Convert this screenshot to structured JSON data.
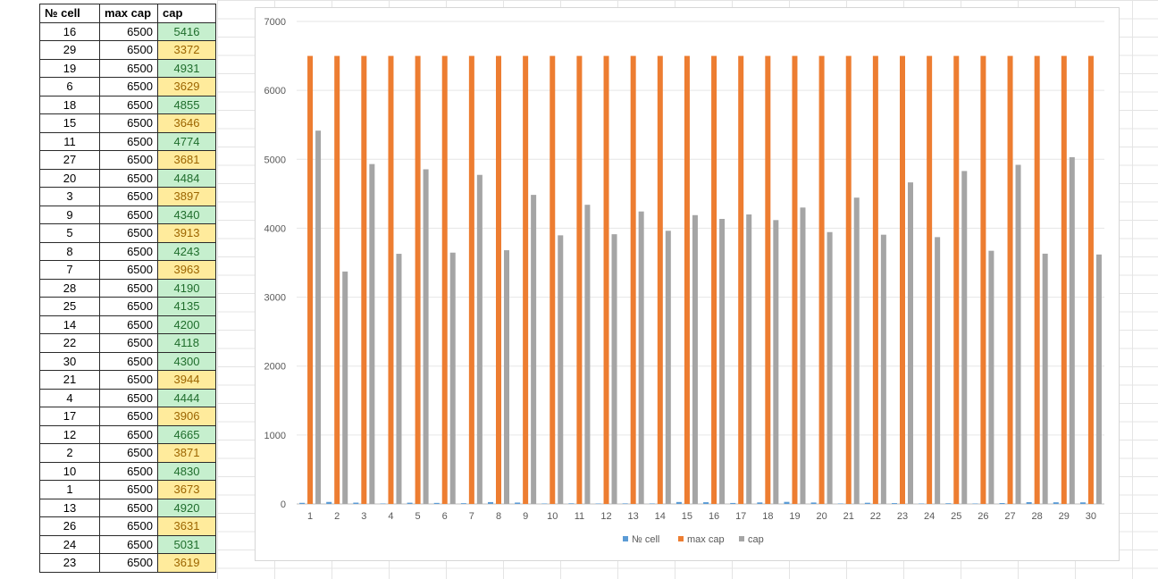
{
  "table": {
    "headers": [
      "№ cell",
      "max cap",
      "cap"
    ],
    "rows": [
      {
        "cell": "16",
        "max_cap": "6500",
        "cap": "5416",
        "status": "good"
      },
      {
        "cell": "29",
        "max_cap": "6500",
        "cap": "3372",
        "status": "warn"
      },
      {
        "cell": "19",
        "max_cap": "6500",
        "cap": "4931",
        "status": "good"
      },
      {
        "cell": "6",
        "max_cap": "6500",
        "cap": "3629",
        "status": "warn"
      },
      {
        "cell": "18",
        "max_cap": "6500",
        "cap": "4855",
        "status": "good"
      },
      {
        "cell": "15",
        "max_cap": "6500",
        "cap": "3646",
        "status": "warn"
      },
      {
        "cell": "11",
        "max_cap": "6500",
        "cap": "4774",
        "status": "good"
      },
      {
        "cell": "27",
        "max_cap": "6500",
        "cap": "3681",
        "status": "warn"
      },
      {
        "cell": "20",
        "max_cap": "6500",
        "cap": "4484",
        "status": "good"
      },
      {
        "cell": "3",
        "max_cap": "6500",
        "cap": "3897",
        "status": "warn"
      },
      {
        "cell": "9",
        "max_cap": "6500",
        "cap": "4340",
        "status": "good"
      },
      {
        "cell": "5",
        "max_cap": "6500",
        "cap": "3913",
        "status": "warn"
      },
      {
        "cell": "8",
        "max_cap": "6500",
        "cap": "4243",
        "status": "good"
      },
      {
        "cell": "7",
        "max_cap": "6500",
        "cap": "3963",
        "status": "warn"
      },
      {
        "cell": "28",
        "max_cap": "6500",
        "cap": "4190",
        "status": "good"
      },
      {
        "cell": "25",
        "max_cap": "6500",
        "cap": "4135",
        "status": "good"
      },
      {
        "cell": "14",
        "max_cap": "6500",
        "cap": "4200",
        "status": "good"
      },
      {
        "cell": "22",
        "max_cap": "6500",
        "cap": "4118",
        "status": "good"
      },
      {
        "cell": "30",
        "max_cap": "6500",
        "cap": "4300",
        "status": "good"
      },
      {
        "cell": "21",
        "max_cap": "6500",
        "cap": "3944",
        "status": "warn"
      },
      {
        "cell": "4",
        "max_cap": "6500",
        "cap": "4444",
        "status": "good"
      },
      {
        "cell": "17",
        "max_cap": "6500",
        "cap": "3906",
        "status": "warn"
      },
      {
        "cell": "12",
        "max_cap": "6500",
        "cap": "4665",
        "status": "good"
      },
      {
        "cell": "2",
        "max_cap": "6500",
        "cap": "3871",
        "status": "warn"
      },
      {
        "cell": "10",
        "max_cap": "6500",
        "cap": "4830",
        "status": "good"
      },
      {
        "cell": "1",
        "max_cap": "6500",
        "cap": "3673",
        "status": "warn"
      },
      {
        "cell": "13",
        "max_cap": "6500",
        "cap": "4920",
        "status": "good"
      },
      {
        "cell": "26",
        "max_cap": "6500",
        "cap": "3631",
        "status": "warn"
      },
      {
        "cell": "24",
        "max_cap": "6500",
        "cap": "5031",
        "status": "good"
      },
      {
        "cell": "23",
        "max_cap": "6500",
        "cap": "3619",
        "status": "warn"
      }
    ]
  },
  "colors": {
    "good_fill": "#c6efce",
    "good_text": "#1f6d2c",
    "warn_fill": "#ffeb9c",
    "warn_text": "#9c6500",
    "series_cell": "#5b9bd5",
    "series_max": "#ed7d31",
    "series_cap": "#a5a5a5"
  },
  "chart_data": {
    "type": "bar",
    "title": "",
    "xlabel": "",
    "ylabel": "",
    "ylim": [
      0,
      7000
    ],
    "yticks": [
      0,
      1000,
      2000,
      3000,
      4000,
      5000,
      6000,
      7000
    ],
    "grid": true,
    "legend_position": "bottom",
    "categories": [
      "1",
      "2",
      "3",
      "4",
      "5",
      "6",
      "7",
      "8",
      "9",
      "10",
      "11",
      "12",
      "13",
      "14",
      "15",
      "16",
      "17",
      "18",
      "19",
      "20",
      "21",
      "22",
      "23",
      "24",
      "25",
      "26",
      "27",
      "28",
      "29",
      "30"
    ],
    "series": [
      {
        "name": "№ cell",
        "color": "#5b9bd5",
        "values": [
          16,
          29,
          19,
          6,
          18,
          15,
          11,
          27,
          20,
          3,
          9,
          5,
          8,
          7,
          28,
          25,
          14,
          22,
          30,
          21,
          4,
          17,
          12,
          2,
          10,
          1,
          13,
          26,
          24,
          23
        ]
      },
      {
        "name": "max cap",
        "color": "#ed7d31",
        "values": [
          6500,
          6500,
          6500,
          6500,
          6500,
          6500,
          6500,
          6500,
          6500,
          6500,
          6500,
          6500,
          6500,
          6500,
          6500,
          6500,
          6500,
          6500,
          6500,
          6500,
          6500,
          6500,
          6500,
          6500,
          6500,
          6500,
          6500,
          6500,
          6500,
          6500
        ]
      },
      {
        "name": "cap",
        "color": "#a5a5a5",
        "values": [
          5416,
          3372,
          4931,
          3629,
          4855,
          3646,
          4774,
          3681,
          4484,
          3897,
          4340,
          3913,
          4243,
          3963,
          4190,
          4135,
          4200,
          4118,
          4300,
          3944,
          4444,
          3906,
          4665,
          3871,
          4830,
          3673,
          4920,
          3631,
          5031,
          3619
        ]
      }
    ]
  }
}
